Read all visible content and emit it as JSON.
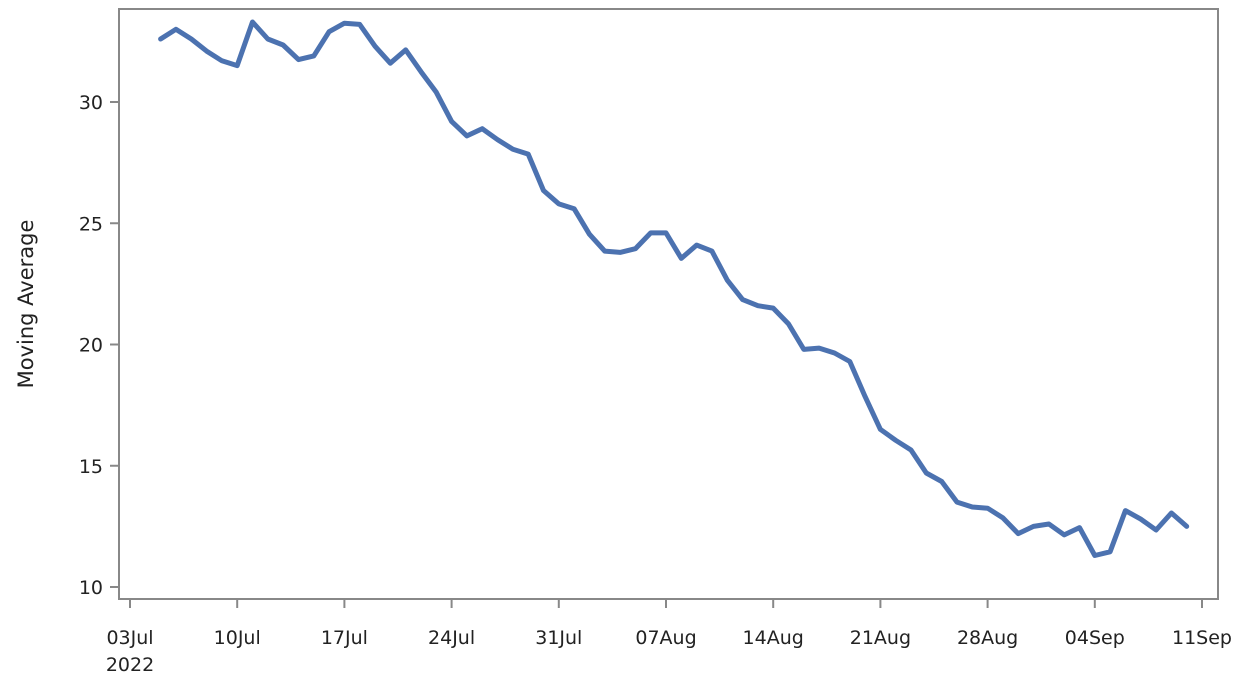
{
  "chart_data": {
    "type": "line",
    "title": "",
    "xlabel": "",
    "ylabel": "Moving Average",
    "x_axis": {
      "type": "date",
      "range": [
        "2022-07-03",
        "2022-09-11"
      ],
      "ticks": [
        {
          "date": "2022-07-03",
          "label": "03Jul",
          "sublabel": "2022"
        },
        {
          "date": "2022-07-10",
          "label": "10Jul"
        },
        {
          "date": "2022-07-17",
          "label": "17Jul"
        },
        {
          "date": "2022-07-24",
          "label": "24Jul"
        },
        {
          "date": "2022-07-31",
          "label": "31Jul"
        },
        {
          "date": "2022-08-07",
          "label": "07Aug"
        },
        {
          "date": "2022-08-14",
          "label": "14Aug"
        },
        {
          "date": "2022-08-21",
          "label": "21Aug"
        },
        {
          "date": "2022-08-28",
          "label": "28Aug"
        },
        {
          "date": "2022-09-04",
          "label": "04Sep"
        },
        {
          "date": "2022-09-11",
          "label": "11Sep"
        }
      ]
    },
    "y_axis": {
      "ylim": [
        9.6,
        33.8
      ],
      "ticks": [
        10,
        15,
        20,
        25,
        30
      ]
    },
    "grid": false,
    "legend": "none",
    "colors": {
      "line": "#4c72b0",
      "frame": "#888888",
      "text": "#222222"
    },
    "series": [
      {
        "x": [
          "2022-07-05",
          "2022-07-06",
          "2022-07-07",
          "2022-07-08",
          "2022-07-09",
          "2022-07-10",
          "2022-07-11",
          "2022-07-12",
          "2022-07-13",
          "2022-07-14",
          "2022-07-15",
          "2022-07-16",
          "2022-07-17",
          "2022-07-18",
          "2022-07-19",
          "2022-07-20",
          "2022-07-21",
          "2022-07-22",
          "2022-07-23",
          "2022-07-24",
          "2022-07-25",
          "2022-07-26",
          "2022-07-27",
          "2022-07-28",
          "2022-07-29",
          "2022-07-30",
          "2022-07-31",
          "2022-08-01",
          "2022-08-02",
          "2022-08-03",
          "2022-08-04",
          "2022-08-05",
          "2022-08-06",
          "2022-08-07",
          "2022-08-08",
          "2022-08-09",
          "2022-08-10",
          "2022-08-11",
          "2022-08-12",
          "2022-08-13",
          "2022-08-14",
          "2022-08-15",
          "2022-08-16",
          "2022-08-17",
          "2022-08-18",
          "2022-08-19",
          "2022-08-20",
          "2022-08-21",
          "2022-08-22",
          "2022-08-23",
          "2022-08-24",
          "2022-08-25",
          "2022-08-26",
          "2022-08-27",
          "2022-08-28",
          "2022-08-29",
          "2022-08-30",
          "2022-08-31",
          "2022-09-01",
          "2022-09-02",
          "2022-09-03",
          "2022-09-04",
          "2022-09-05",
          "2022-09-06",
          "2022-09-07",
          "2022-09-08",
          "2022-09-09",
          "2022-09-10"
        ],
        "values": [
          32.6,
          33.0,
          32.6,
          32.1,
          31.7,
          31.5,
          33.3,
          32.6,
          32.35,
          31.75,
          31.9,
          32.9,
          33.25,
          33.2,
          32.3,
          31.6,
          32.15,
          31.25,
          30.4,
          29.2,
          28.6,
          28.9,
          28.45,
          28.05,
          27.85,
          26.35,
          25.8,
          25.6,
          24.55,
          23.85,
          23.8,
          23.95,
          24.6,
          24.6,
          23.55,
          24.1,
          23.85,
          22.65,
          21.85,
          21.6,
          21.5,
          20.85,
          19.8,
          19.85,
          19.65,
          19.3,
          17.85,
          16.5,
          16.05,
          15.65,
          14.7,
          14.35,
          13.5,
          13.3,
          13.25,
          12.85,
          12.2,
          12.5,
          12.6,
          12.15,
          12.45,
          11.3,
          11.45,
          13.15,
          12.8,
          12.35,
          13.05,
          12.5
        ]
      }
    ]
  }
}
